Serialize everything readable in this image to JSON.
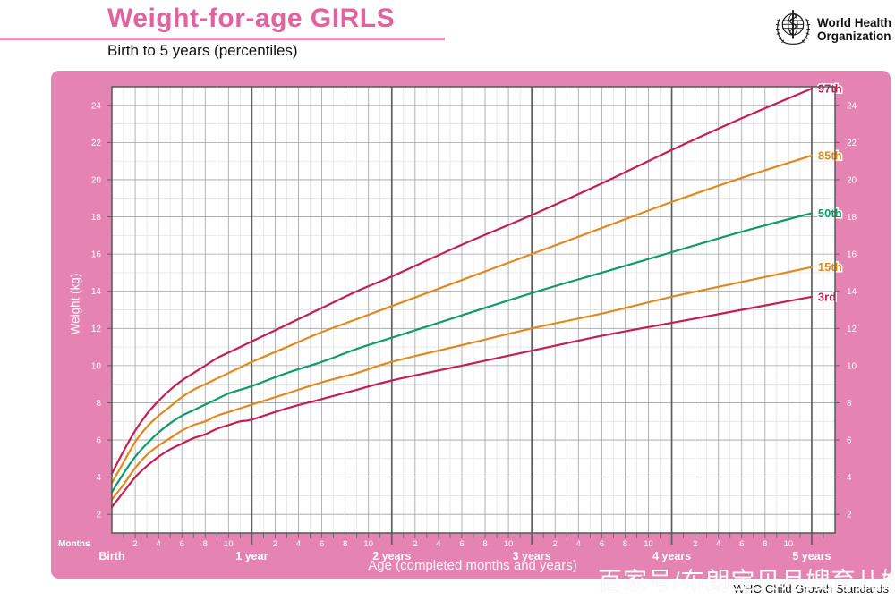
{
  "header": {
    "title": "Weight-for-age GIRLS",
    "subtitle": "Birth to 5 years (percentiles)",
    "logo": {
      "line1": "World Health",
      "line2": "Organization"
    }
  },
  "footer": {
    "standards": "WHO Child Growth Standards",
    "watermark": "百家号/布朗宝贝月嫂育儿嫂"
  },
  "colors": {
    "panel_pink": "#e583b3",
    "title_pink": "#e2619f",
    "rule_pink": "#ee93bf",
    "plot_bg": "#ffffff",
    "grid_minor": "#dedede",
    "grid_major": "#a2a2a2",
    "grid_year": "#5f5f5f",
    "axis_border": "#4f4f4f",
    "tick": "#5a5a5a",
    "label_white": "#ffffff",
    "percentile_red": "#c41f51",
    "percentile_orange": "#e0891f",
    "percentile_green": "#0f9b6a"
  },
  "chart_data": {
    "type": "line",
    "title": "Weight-for-age GIRLS",
    "subtitle": "Birth to 5 years (percentiles)",
    "xlabel": "Age (completed months and years)",
    "ylabel": "Weight (kg)",
    "x_unit_label": "Months",
    "xlim": [
      0,
      62
    ],
    "ylim": [
      1,
      25
    ],
    "grid": true,
    "y_tick_step": 2,
    "y_tick_min": 2,
    "y_tick_max": 24,
    "month_tick_label_offsets": [
      2,
      4,
      6,
      8,
      10
    ],
    "year_tick_labels": [
      {
        "month": 0,
        "label": "Birth"
      },
      {
        "month": 12,
        "label": "1 year"
      },
      {
        "month": 24,
        "label": "2 years"
      },
      {
        "month": 36,
        "label": "3 years"
      },
      {
        "month": 48,
        "label": "4 years"
      },
      {
        "month": 60,
        "label": "5 years"
      }
    ],
    "x_months": [
      0,
      1,
      2,
      3,
      4,
      5,
      6,
      7,
      8,
      9,
      10,
      11,
      12,
      15,
      18,
      21,
      24,
      30,
      36,
      42,
      48,
      54,
      60
    ],
    "series": [
      {
        "name": "97th",
        "color": "#c41f51",
        "values": [
          4.2,
          5.4,
          6.5,
          7.4,
          8.1,
          8.7,
          9.2,
          9.6,
          10.0,
          10.4,
          10.7,
          11.0,
          11.3,
          12.2,
          13.1,
          14.0,
          14.8,
          16.5,
          18.1,
          19.8,
          21.6,
          23.3,
          24.9
        ]
      },
      {
        "name": "85th",
        "color": "#e0891f",
        "values": [
          3.7,
          4.8,
          5.9,
          6.7,
          7.3,
          7.8,
          8.3,
          8.7,
          9.0,
          9.3,
          9.6,
          9.9,
          10.2,
          11.0,
          11.8,
          12.5,
          13.2,
          14.6,
          16.0,
          17.4,
          18.8,
          20.1,
          21.3
        ]
      },
      {
        "name": "50th",
        "color": "#0f9b6a",
        "values": [
          3.2,
          4.2,
          5.1,
          5.8,
          6.4,
          6.9,
          7.3,
          7.6,
          7.9,
          8.2,
          8.5,
          8.7,
          8.9,
          9.6,
          10.2,
          10.9,
          11.5,
          12.7,
          13.9,
          15.0,
          16.1,
          17.2,
          18.2
        ]
      },
      {
        "name": "15th",
        "color": "#e0891f",
        "values": [
          2.8,
          3.6,
          4.5,
          5.2,
          5.7,
          6.1,
          6.5,
          6.8,
          7.0,
          7.3,
          7.5,
          7.7,
          7.9,
          8.5,
          9.1,
          9.6,
          10.2,
          11.1,
          12.0,
          12.8,
          13.7,
          14.5,
          15.3
        ]
      },
      {
        "name": "3rd",
        "color": "#c41f51",
        "values": [
          2.4,
          3.2,
          4.0,
          4.6,
          5.1,
          5.5,
          5.8,
          6.1,
          6.3,
          6.6,
          6.8,
          7.0,
          7.1,
          7.7,
          8.2,
          8.7,
          9.2,
          10.0,
          10.8,
          11.6,
          12.3,
          13.0,
          13.7
        ]
      }
    ],
    "series_label_position": "right"
  }
}
